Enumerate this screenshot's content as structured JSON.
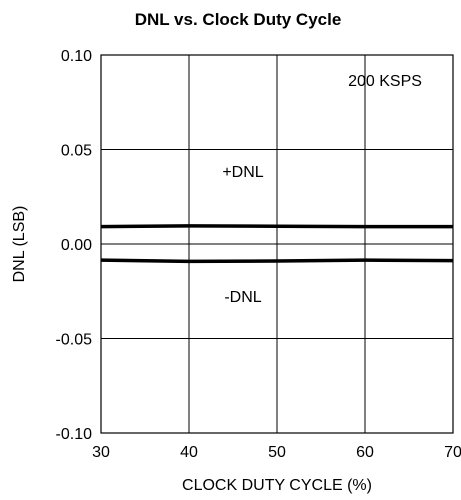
{
  "chart_data": {
    "type": "line",
    "title": "DNL vs. Clock Duty Cycle",
    "xlabel": "CLOCK DUTY CYCLE (%)",
    "ylabel": "DNL (LSB)",
    "xlim": [
      30,
      70
    ],
    "ylim": [
      -0.1,
      0.1
    ],
    "x_ticks": [
      "30",
      "40",
      "50",
      "60",
      "70"
    ],
    "y_ticks": [
      "0.10",
      "0.05",
      "0.00",
      "-0.05",
      "-0.10"
    ],
    "grid": true,
    "annotations": [
      "200 KSPS",
      "+DNL",
      "-DNL"
    ],
    "series": [
      {
        "name": "+DNL",
        "x": [
          30,
          40,
          50,
          60,
          70
        ],
        "y": [
          0.0092,
          0.0096,
          0.0094,
          0.0092,
          0.0092
        ]
      },
      {
        "name": "-DNL",
        "x": [
          30,
          40,
          50,
          60,
          70
        ],
        "y": [
          -0.0085,
          -0.0092,
          -0.009,
          -0.0085,
          -0.0088
        ]
      }
    ],
    "colors": {
      "line": "#000000",
      "grid": "#000000"
    }
  }
}
